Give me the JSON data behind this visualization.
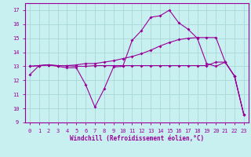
{
  "xlabel": "Windchill (Refroidissement éolien,°C)",
  "bg_color": "#c8f0f0",
  "grid_color": "#a8d8d8",
  "line_color": "#990099",
  "xlim": [
    -0.5,
    23.5
  ],
  "ylim": [
    9,
    17.5
  ],
  "xticks": [
    0,
    1,
    2,
    3,
    4,
    5,
    6,
    7,
    8,
    9,
    10,
    11,
    12,
    13,
    14,
    15,
    16,
    17,
    18,
    19,
    20,
    21,
    22,
    23
  ],
  "yticks": [
    9,
    10,
    11,
    12,
    13,
    14,
    15,
    16,
    17
  ],
  "line1_x": [
    0,
    1,
    2,
    3,
    4,
    5,
    6,
    7,
    8,
    9,
    10,
    11,
    12,
    13,
    14,
    15,
    16,
    17,
    18,
    19,
    20,
    21,
    22,
    23
  ],
  "line1_y": [
    12.4,
    13.05,
    13.1,
    13.0,
    12.9,
    12.9,
    11.7,
    10.1,
    11.4,
    12.95,
    13.0,
    14.85,
    15.55,
    16.5,
    16.6,
    17.0,
    16.1,
    15.65,
    15.0,
    13.2,
    13.0,
    13.3,
    12.3,
    9.55
  ],
  "line2_x": [
    0,
    1,
    2,
    3,
    4,
    5,
    6,
    7,
    8,
    9,
    10,
    11,
    12,
    13,
    14,
    15,
    16,
    17,
    18,
    19,
    20,
    21,
    22,
    23
  ],
  "line2_y": [
    13.0,
    13.05,
    13.1,
    13.05,
    13.05,
    13.1,
    13.2,
    13.2,
    13.3,
    13.4,
    13.55,
    13.7,
    13.9,
    14.15,
    14.45,
    14.7,
    14.9,
    15.0,
    15.05,
    15.05,
    15.05,
    13.3,
    12.3,
    9.55
  ],
  "line3_x": [
    0,
    1,
    2,
    3,
    4,
    5,
    6,
    7,
    8,
    9,
    10,
    11,
    12,
    13,
    14,
    15,
    16,
    17,
    18,
    19,
    20,
    21,
    22,
    23
  ],
  "line3_y": [
    13.0,
    13.05,
    13.1,
    13.05,
    13.05,
    13.0,
    13.0,
    13.05,
    13.05,
    13.05,
    13.05,
    13.05,
    13.05,
    13.05,
    13.05,
    13.05,
    13.05,
    13.05,
    13.05,
    13.05,
    13.3,
    13.3,
    12.3,
    9.55
  ]
}
